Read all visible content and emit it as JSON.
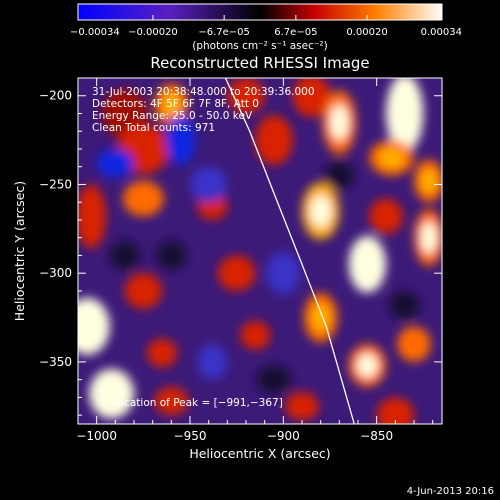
{
  "chart_data": {
    "type": "heatmap",
    "title": "Reconstructed RHESSI Image",
    "xlabel": "Heliocentric X (arcsec)",
    "ylabel": "Heliocentric Y (arcsec)",
    "xlim": [
      -1010,
      -815
    ],
    "ylim": [
      -385,
      -190
    ],
    "x_ticks": [
      -1000,
      -950,
      -900,
      -850
    ],
    "y_ticks": [
      -200,
      -250,
      -300,
      -350
    ],
    "x_tick_labels": [
      "−1000",
      "−950",
      "−900",
      "−850"
    ],
    "y_tick_labels": [
      "−200",
      "−250",
      "−300",
      "−350"
    ],
    "colorbar": {
      "min": -0.00034,
      "max": 0.00034,
      "tick_labels": [
        "−0.00034",
        "−0.00020",
        "−6.7e−05",
        "6.7e−05",
        "0.00020",
        "0.00034"
      ],
      "tick_values": [
        -0.00034,
        -0.0002,
        -6.7e-05,
        6.7e-05,
        0.0002,
        0.00034
      ],
      "unit_label": "(photons cm⁻² s⁻¹ asec⁻²)"
    },
    "annotations": {
      "time_range": "31-Jul-2003 20:38:48.000 to 20:39:36.000",
      "detectors": "Detectors: 4F 5F 6F 7F 8F, Att 0",
      "energy": "Energy Range: 25.0 - 50.0 keV",
      "method": "Clean    Total counts: 971",
      "peak": "Location of Peak = [−991,−367]"
    },
    "limb": {
      "points": [
        [
          -931,
          -190
        ],
        [
          -918,
          -220
        ],
        [
          -905,
          -255
        ],
        [
          -890,
          -295
        ],
        [
          -877,
          -330
        ],
        [
          -862,
          -385
        ]
      ]
    },
    "blobs": [
      {
        "x": -985,
        "y": -210,
        "v": 0.25,
        "rx": 12,
        "ry": 14
      },
      {
        "x": -975,
        "y": -230,
        "v": 0.35,
        "rx": 14,
        "ry": 14
      },
      {
        "x": -960,
        "y": -205,
        "v": 0.5,
        "rx": 9,
        "ry": 12
      },
      {
        "x": -920,
        "y": -200,
        "v": 0.3,
        "rx": 10,
        "ry": 10
      },
      {
        "x": -905,
        "y": -225,
        "v": 0.4,
        "rx": 10,
        "ry": 14
      },
      {
        "x": -885,
        "y": -200,
        "v": 0.3,
        "rx": 10,
        "ry": 12
      },
      {
        "x": -870,
        "y": -215,
        "v": 0.6,
        "rx": 9,
        "ry": 18
      },
      {
        "x": -835,
        "y": -210,
        "v": 1.0,
        "rx": 10,
        "ry": 22
      },
      {
        "x": -842,
        "y": -235,
        "v": 0.5,
        "rx": 12,
        "ry": 10
      },
      {
        "x": -975,
        "y": -258,
        "v": 0.45,
        "rx": 11,
        "ry": 10
      },
      {
        "x": -1003,
        "y": -268,
        "v": 0.35,
        "rx": 8,
        "ry": 18
      },
      {
        "x": -880,
        "y": -265,
        "v": 0.75,
        "rx": 10,
        "ry": 16
      },
      {
        "x": -845,
        "y": -268,
        "v": 0.4,
        "rx": 9,
        "ry": 10
      },
      {
        "x": -822,
        "y": -248,
        "v": 0.55,
        "rx": 8,
        "ry": 12
      },
      {
        "x": -822,
        "y": -280,
        "v": 0.6,
        "rx": 8,
        "ry": 16
      },
      {
        "x": -938,
        "y": -262,
        "v": 0.3,
        "rx": 8,
        "ry": 8
      },
      {
        "x": -925,
        "y": -300,
        "v": 0.35,
        "rx": 10,
        "ry": 10
      },
      {
        "x": -1005,
        "y": -330,
        "v": 0.95,
        "rx": 12,
        "ry": 16
      },
      {
        "x": -975,
        "y": -310,
        "v": 0.35,
        "rx": 10,
        "ry": 10
      },
      {
        "x": -965,
        "y": -345,
        "v": 0.3,
        "rx": 8,
        "ry": 8
      },
      {
        "x": -915,
        "y": -335,
        "v": 0.3,
        "rx": 8,
        "ry": 8
      },
      {
        "x": -855,
        "y": -295,
        "v": 0.85,
        "rx": 10,
        "ry": 16
      },
      {
        "x": -880,
        "y": -325,
        "v": 0.55,
        "rx": 9,
        "ry": 14
      },
      {
        "x": -855,
        "y": -352,
        "v": 0.6,
        "rx": 10,
        "ry": 12
      },
      {
        "x": -830,
        "y": -340,
        "v": 0.45,
        "rx": 9,
        "ry": 10
      },
      {
        "x": -840,
        "y": -380,
        "v": 0.4,
        "rx": 10,
        "ry": 10
      },
      {
        "x": -992,
        "y": -368,
        "v": 1.0,
        "rx": 12,
        "ry": 14
      },
      {
        "x": -960,
        "y": -372,
        "v": 0.35,
        "rx": 9,
        "ry": 8
      },
      {
        "x": -890,
        "y": -375,
        "v": 0.4,
        "rx": 9,
        "ry": 8
      },
      {
        "x": -990,
        "y": -238,
        "v": -0.7,
        "rx": 10,
        "ry": 8
      },
      {
        "x": -955,
        "y": -225,
        "v": -0.6,
        "rx": 8,
        "ry": 14
      },
      {
        "x": -940,
        "y": -250,
        "v": -0.5,
        "rx": 10,
        "ry": 10
      },
      {
        "x": -900,
        "y": -300,
        "v": -0.45,
        "rx": 9,
        "ry": 12
      },
      {
        "x": -960,
        "y": -290,
        "v": -0.4,
        "rx": 8,
        "ry": 8
      },
      {
        "x": -870,
        "y": -245,
        "v": -0.4,
        "rx": 8,
        "ry": 8
      },
      {
        "x": -835,
        "y": -318,
        "v": -0.35,
        "rx": 8,
        "ry": 8
      },
      {
        "x": -938,
        "y": -350,
        "v": -0.45,
        "rx": 8,
        "ry": 10
      },
      {
        "x": -905,
        "y": -360,
        "v": -0.4,
        "rx": 9,
        "ry": 8
      },
      {
        "x": -985,
        "y": -290,
        "v": -0.35,
        "rx": 8,
        "ry": 8
      }
    ]
  },
  "footer": {
    "date": "4-Jun-2013 20:16"
  },
  "colors": {
    "background": "#000000",
    "text": "#ffffff",
    "limb": "#ffffff"
  }
}
